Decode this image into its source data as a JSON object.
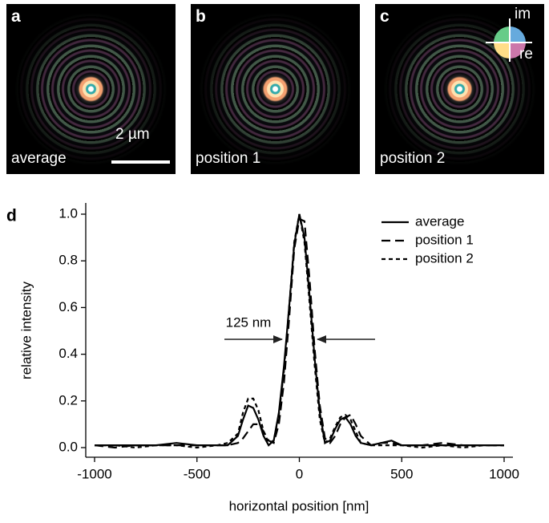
{
  "panels": [
    {
      "letter": "a",
      "caption": "average"
    },
    {
      "letter": "b",
      "caption": "position 1"
    },
    {
      "letter": "c",
      "caption": "position 2"
    }
  ],
  "scale_bar": "2 µm",
  "phase_axes": {
    "vertical": "im",
    "horizontal": "re"
  },
  "chart_data": {
    "type": "line",
    "panel_letter": "d",
    "xlabel": "horizontal position [nm]",
    "ylabel": "relative intensity",
    "annotation": "125 nm",
    "x": [
      -1000,
      -900,
      -800,
      -700,
      -600,
      -500,
      -400,
      -350,
      -300,
      -275,
      -250,
      -225,
      -200,
      -175,
      -150,
      -125,
      -100,
      -75,
      -50,
      -25,
      0,
      25,
      50,
      75,
      100,
      125,
      150,
      175,
      200,
      225,
      250,
      275,
      300,
      350,
      400,
      450,
      500,
      600,
      700,
      800,
      900,
      1000
    ],
    "series": [
      {
        "name": "average",
        "color": "#000000",
        "dash": "solid",
        "values": [
          0.01,
          0.01,
          0.01,
          0.01,
          0.02,
          0.01,
          0.01,
          0.01,
          0.05,
          0.12,
          0.18,
          0.17,
          0.12,
          0.05,
          0.01,
          0.03,
          0.15,
          0.35,
          0.6,
          0.87,
          1.0,
          0.9,
          0.65,
          0.38,
          0.15,
          0.02,
          0.03,
          0.08,
          0.12,
          0.13,
          0.1,
          0.05,
          0.02,
          0.01,
          0.02,
          0.03,
          0.01,
          0.01,
          0.01,
          0.01,
          0.01,
          0.01
        ]
      },
      {
        "name": "position 1",
        "color": "#000000",
        "dash": "long",
        "values": [
          0.01,
          0.0,
          0.01,
          0.01,
          0.01,
          0.01,
          0.01,
          0.01,
          0.02,
          0.04,
          0.07,
          0.1,
          0.1,
          0.07,
          0.03,
          0.02,
          0.1,
          0.28,
          0.55,
          0.85,
          0.98,
          0.97,
          0.72,
          0.42,
          0.18,
          0.04,
          0.02,
          0.05,
          0.1,
          0.13,
          0.14,
          0.1,
          0.05,
          0.01,
          0.02,
          0.02,
          0.01,
          0.01,
          0.02,
          0.01,
          0.01,
          0.01
        ]
      },
      {
        "name": "position 2",
        "color": "#000000",
        "dash": "short",
        "values": [
          0.01,
          0.01,
          0.0,
          0.01,
          0.01,
          0.0,
          0.01,
          0.02,
          0.06,
          0.15,
          0.21,
          0.21,
          0.16,
          0.07,
          0.02,
          0.03,
          0.14,
          0.33,
          0.6,
          0.88,
          1.0,
          0.88,
          0.62,
          0.35,
          0.12,
          0.02,
          0.04,
          0.09,
          0.13,
          0.14,
          0.12,
          0.07,
          0.02,
          0.01,
          0.01,
          0.01,
          0.01,
          0.0,
          0.01,
          0.0,
          0.01,
          0.01
        ]
      }
    ],
    "xlim": [
      -1000,
      1000
    ],
    "ylim": [
      0,
      1.0
    ],
    "xticks": [
      -1000,
      -500,
      0,
      500,
      1000
    ],
    "yticks": [
      {
        "value": 0,
        "label": "0.0"
      },
      0.2,
      0.4,
      0.6,
      0.8,
      {
        "value": 1.0,
        "label": "1.0"
      }
    ],
    "grid": false,
    "legend": "upper right"
  }
}
